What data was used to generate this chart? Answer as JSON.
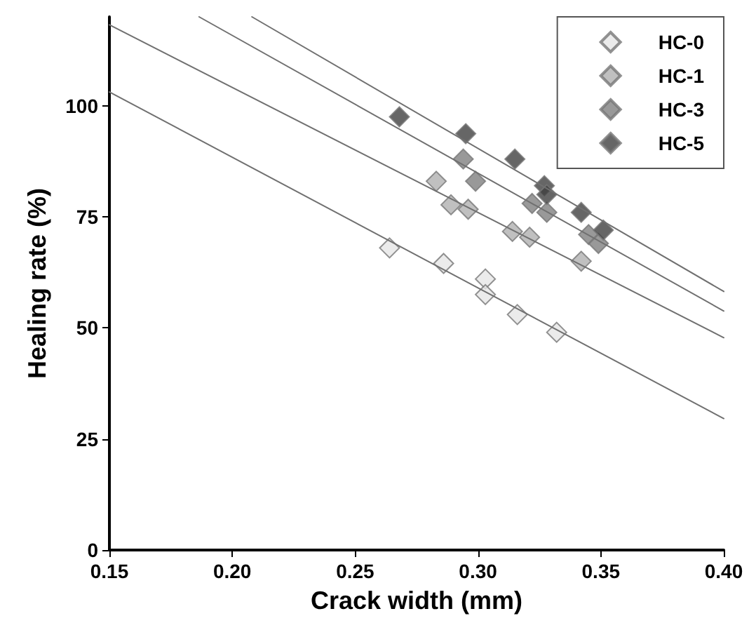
{
  "chart_data": {
    "type": "scatter",
    "xlabel": "Crack width (mm)",
    "ylabel": "Healing rate (%)",
    "xlim": [
      0.15,
      0.4
    ],
    "xticks": [
      0.15,
      {
        "value": 0.2,
        "label": "0.20"
      },
      0.25,
      {
        "value": 0.3,
        "label": "0.30"
      },
      0.35,
      {
        "value": 0.4,
        "label": "0.40"
      }
    ],
    "ylim": [
      0,
      120
    ],
    "yticks": [
      0,
      25,
      50,
      75,
      100
    ],
    "grid": false,
    "legend": "top right",
    "marker": "diamond",
    "series": [
      {
        "name": "HC-0",
        "color": "#e6e6e6",
        "x": [
          0.264,
          0.286,
          0.303,
          0.303,
          0.316,
          0.332
        ],
        "values": [
          68,
          64.5,
          61,
          57.5,
          53,
          49
        ]
      },
      {
        "name": "HC-1",
        "color": "#b0b0b0",
        "x": [
          0.283,
          0.289,
          0.296,
          0.314,
          0.321,
          0.342
        ],
        "values": [
          83,
          77.7,
          76.7,
          71.7,
          70.4,
          65
        ]
      },
      {
        "name": "HC-3",
        "color": "#808080",
        "x": [
          0.294,
          0.299,
          0.322,
          0.328,
          0.345,
          0.349
        ],
        "values": [
          88,
          83,
          78,
          76,
          71,
          69
        ]
      },
      {
        "name": "HC-5",
        "color": "#404040",
        "x": [
          0.268,
          0.295,
          0.315,
          0.327,
          0.328,
          0.342,
          0.351
        ],
        "values": [
          97.5,
          93.7,
          88,
          82,
          80,
          76,
          72
        ]
      },
      {
        "type": "line",
        "color": "#707070",
        "marker": "none",
        "x": [
          0.15,
          0.4
        ],
        "values": [
          103.1,
          29.6
        ]
      },
      {
        "type": "line",
        "color": "#707070",
        "marker": "none",
        "x": [
          0.15,
          0.4
        ],
        "values": [
          118.2,
          47.8
        ]
      },
      {
        "type": "line",
        "color": "#707070",
        "marker": "none",
        "x": [
          0.1865,
          0.4
        ],
        "values": [
          120,
          53.8
        ]
      },
      {
        "type": "line",
        "color": "#707070",
        "marker": "none",
        "x": [
          0.208,
          0.4
        ],
        "values": [
          120,
          58.2
        ]
      }
    ]
  }
}
